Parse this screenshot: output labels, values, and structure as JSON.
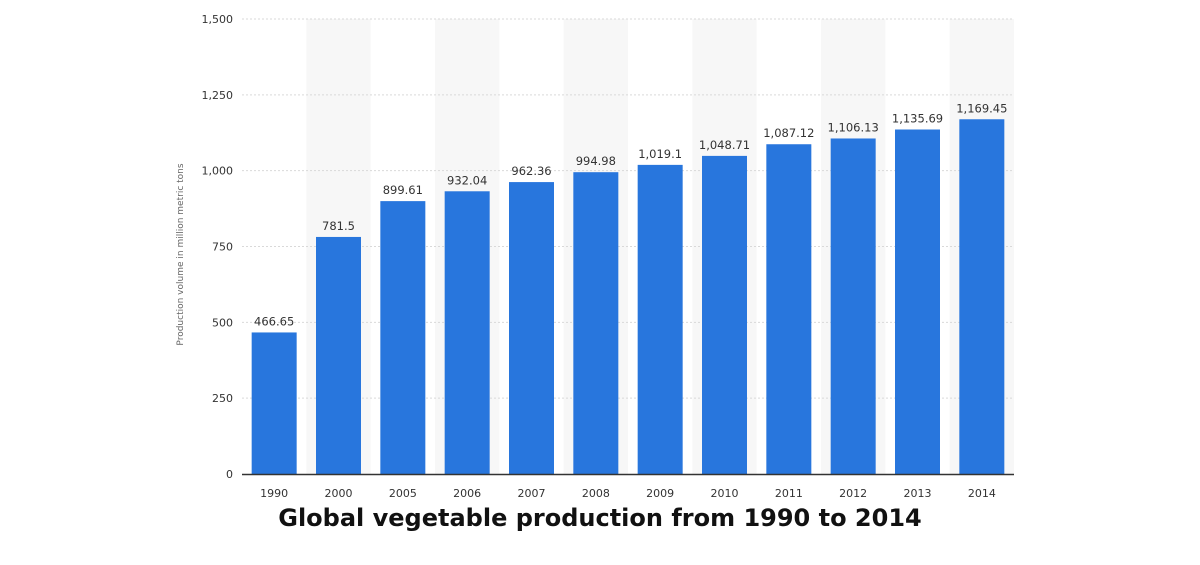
{
  "chart_data": {
    "type": "bar",
    "title": "Global vegetable production from 1990 to 2014",
    "xlabel": "",
    "ylabel": "Production volume in million metric tons",
    "categories": [
      "1990",
      "2000",
      "2005",
      "2006",
      "2007",
      "2008",
      "2009",
      "2010",
      "2011",
      "2012",
      "2013",
      "2014"
    ],
    "values": [
      466.65,
      781.5,
      899.61,
      932.04,
      962.36,
      994.98,
      1019.1,
      1048.71,
      1087.12,
      1106.13,
      1135.69,
      1169.45
    ],
    "value_labels": [
      "466.65",
      "781.5",
      "899.61",
      "932.04",
      "962.36",
      "994.98",
      "1,019.1",
      "1,048.71",
      "1,087.12",
      "1,106.13",
      "1,135.69",
      "1,169.45"
    ],
    "ylim": [
      0,
      1500
    ],
    "yticks": [
      0,
      250,
      500,
      750,
      1000,
      1250,
      1500
    ],
    "ytick_labels": [
      "0",
      "250",
      "500",
      "750",
      "1,000",
      "1,250",
      "1,500"
    ],
    "grid": true,
    "legend": "none",
    "colors": {
      "bar": "#2876dd",
      "band": "#f7f7f7",
      "grid": "#d9d9d9",
      "axis": "#333333"
    }
  }
}
